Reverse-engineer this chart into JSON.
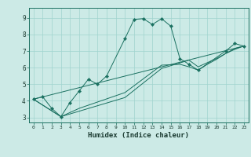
{
  "xlabel": "Humidex (Indice chaleur)",
  "xlim": [
    -0.5,
    23.5
  ],
  "ylim": [
    2.7,
    9.6
  ],
  "xticks": [
    0,
    1,
    2,
    3,
    4,
    5,
    6,
    7,
    8,
    9,
    10,
    11,
    12,
    13,
    14,
    15,
    16,
    17,
    18,
    19,
    20,
    21,
    22,
    23
  ],
  "yticks": [
    3,
    4,
    5,
    6,
    7,
    8,
    9
  ],
  "bg_color": "#cceae6",
  "grid_color": "#a0d4ce",
  "line_color": "#1a7060",
  "series": [
    {
      "x": [
        0,
        1,
        2,
        3,
        4,
        5,
        6,
        7,
        8,
        10,
        11,
        12,
        13,
        14,
        15,
        16,
        17,
        18,
        21,
        22,
        23
      ],
      "y": [
        4.1,
        4.25,
        3.55,
        3.05,
        3.9,
        4.6,
        5.3,
        5.0,
        5.5,
        7.75,
        8.9,
        8.95,
        8.6,
        8.95,
        8.5,
        6.55,
        6.2,
        5.85,
        7.0,
        7.45,
        7.3
      ],
      "marker": true
    },
    {
      "x": [
        0,
        3,
        5,
        10,
        14,
        16,
        17,
        18,
        19,
        20,
        21,
        22,
        23
      ],
      "y": [
        4.1,
        3.05,
        3.55,
        4.5,
        6.15,
        6.2,
        6.05,
        5.85,
        6.2,
        6.5,
        6.85,
        7.1,
        7.3
      ],
      "marker": false
    },
    {
      "x": [
        0,
        3,
        10,
        14,
        17,
        18,
        19,
        20,
        21,
        22,
        23
      ],
      "y": [
        4.1,
        3.05,
        4.2,
        5.95,
        6.45,
        6.05,
        6.3,
        6.55,
        6.85,
        7.15,
        7.3
      ],
      "marker": false
    },
    {
      "x": [
        0,
        23
      ],
      "y": [
        4.1,
        7.3
      ],
      "marker": false
    }
  ]
}
